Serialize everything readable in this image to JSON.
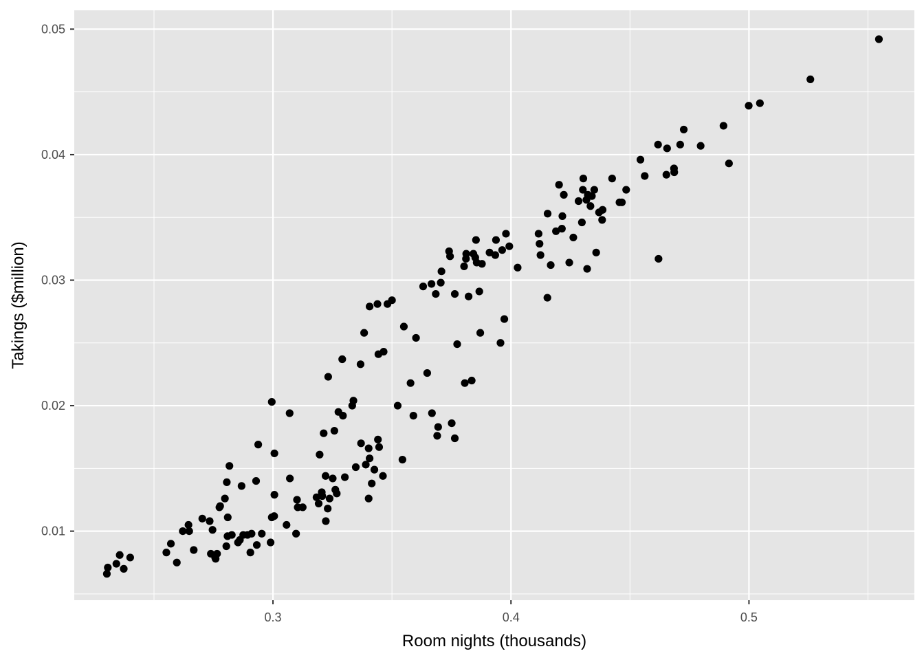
{
  "chart_data": {
    "type": "scatter",
    "title": "",
    "xlabel": "Room nights (thousands)",
    "ylabel": "Takings ($million)",
    "xlim": [
      0.2165,
      0.5695
    ],
    "ylim": [
      0.0045,
      0.0515
    ],
    "x_ticks": [
      0.3,
      0.4,
      0.5
    ],
    "x_tick_labels": [
      "0.3",
      "0.4",
      "0.5"
    ],
    "x_minor_ticks": [
      0.25,
      0.35,
      0.45,
      0.55
    ],
    "y_ticks": [
      0.01,
      0.02,
      0.03,
      0.04,
      0.05
    ],
    "y_tick_labels": [
      "0.01",
      "0.02",
      "0.03",
      "0.04",
      "0.05"
    ],
    "y_minor_ticks": [
      0.005,
      0.015,
      0.025,
      0.035,
      0.045
    ],
    "grid": true,
    "legend": "none",
    "colors": {
      "panel": "#e5e5e5",
      "grid": "#ffffff",
      "point": "#000000",
      "tick": "#333333",
      "tick_text": "#4d4d4d"
    },
    "points": [
      [
        0.2302,
        0.0066
      ],
      [
        0.2306,
        0.0071
      ],
      [
        0.2342,
        0.0074
      ],
      [
        0.2356,
        0.0081
      ],
      [
        0.2373,
        0.007
      ],
      [
        0.24,
        0.0079
      ],
      [
        0.2552,
        0.0083
      ],
      [
        0.2571,
        0.009
      ],
      [
        0.2596,
        0.0075
      ],
      [
        0.2621,
        0.01
      ],
      [
        0.2645,
        0.0105
      ],
      [
        0.2648,
        0.01
      ],
      [
        0.2667,
        0.0085
      ],
      [
        0.2703,
        0.011
      ],
      [
        0.2734,
        0.0108
      ],
      [
        0.2739,
        0.0082
      ],
      [
        0.2746,
        0.0101
      ],
      [
        0.2757,
        0.0079
      ],
      [
        0.2759,
        0.0078
      ],
      [
        0.2765,
        0.0082
      ],
      [
        0.2775,
        0.0119
      ],
      [
        0.2778,
        0.012
      ],
      [
        0.2798,
        0.0126
      ],
      [
        0.2804,
        0.0088
      ],
      [
        0.2806,
        0.0139
      ],
      [
        0.281,
        0.0111
      ],
      [
        0.2809,
        0.0096
      ],
      [
        0.2817,
        0.0152
      ],
      [
        0.2827,
        0.0097
      ],
      [
        0.2853,
        0.0091
      ],
      [
        0.2861,
        0.0093
      ],
      [
        0.2868,
        0.0136
      ],
      [
        0.2875,
        0.0097
      ],
      [
        0.2893,
        0.0097
      ],
      [
        0.2905,
        0.0083
      ],
      [
        0.291,
        0.0098
      ],
      [
        0.2929,
        0.014
      ],
      [
        0.2932,
        0.0089
      ],
      [
        0.2938,
        0.0169
      ],
      [
        0.2953,
        0.0098
      ],
      [
        0.299,
        0.0091
      ],
      [
        0.2995,
        0.0111
      ],
      [
        0.2995,
        0.0203
      ],
      [
        0.3005,
        0.0112
      ],
      [
        0.3006,
        0.0129
      ],
      [
        0.3006,
        0.0162
      ],
      [
        0.3057,
        0.0105
      ],
      [
        0.307,
        0.0194
      ],
      [
        0.3071,
        0.0142
      ],
      [
        0.3097,
        0.0098
      ],
      [
        0.3101,
        0.0125
      ],
      [
        0.3104,
        0.0119
      ],
      [
        0.3125,
        0.0119
      ],
      [
        0.3183,
        0.0127
      ],
      [
        0.3192,
        0.0122
      ],
      [
        0.3196,
        0.0161
      ],
      [
        0.3205,
        0.0131
      ],
      [
        0.3207,
        0.0128
      ],
      [
        0.3213,
        0.0178
      ],
      [
        0.3221,
        0.0144
      ],
      [
        0.3222,
        0.0108
      ],
      [
        0.323,
        0.0118
      ],
      [
        0.3232,
        0.0223
      ],
      [
        0.3238,
        0.0126
      ],
      [
        0.3251,
        0.0142
      ],
      [
        0.3258,
        0.018
      ],
      [
        0.3262,
        0.0133
      ],
      [
        0.3268,
        0.013
      ],
      [
        0.3275,
        0.0195
      ],
      [
        0.3291,
        0.0237
      ],
      [
        0.3294,
        0.0192
      ],
      [
        0.3302,
        0.0143
      ],
      [
        0.3333,
        0.02
      ],
      [
        0.3338,
        0.0204
      ],
      [
        0.3348,
        0.0151
      ],
      [
        0.3368,
        0.0233
      ],
      [
        0.337,
        0.017
      ],
      [
        0.3383,
        0.0258
      ],
      [
        0.339,
        0.0153
      ],
      [
        0.3402,
        0.0126
      ],
      [
        0.3402,
        0.0166
      ],
      [
        0.3406,
        0.0158
      ],
      [
        0.3406,
        0.0279
      ],
      [
        0.3415,
        0.0138
      ],
      [
        0.3426,
        0.0149
      ],
      [
        0.3439,
        0.0281
      ],
      [
        0.3441,
        0.0173
      ],
      [
        0.3443,
        0.0241
      ],
      [
        0.3446,
        0.0167
      ],
      [
        0.3462,
        0.0144
      ],
      [
        0.3465,
        0.0243
      ],
      [
        0.3481,
        0.0281
      ],
      [
        0.35,
        0.0284
      ],
      [
        0.3524,
        0.02
      ],
      [
        0.3544,
        0.0157
      ],
      [
        0.355,
        0.0263
      ],
      [
        0.3578,
        0.0218
      ],
      [
        0.359,
        0.0192
      ],
      [
        0.3601,
        0.0254
      ],
      [
        0.3631,
        0.0295
      ],
      [
        0.3648,
        0.0226
      ],
      [
        0.3666,
        0.0297
      ],
      [
        0.3668,
        0.0194
      ],
      [
        0.3684,
        0.0289
      ],
      [
        0.369,
        0.0176
      ],
      [
        0.3694,
        0.0183
      ],
      [
        0.3705,
        0.0298
      ],
      [
        0.3708,
        0.0307
      ],
      [
        0.374,
        0.0323
      ],
      [
        0.3744,
        0.0319
      ],
      [
        0.3751,
        0.0186
      ],
      [
        0.3764,
        0.0289
      ],
      [
        0.3764,
        0.0174
      ],
      [
        0.3774,
        0.0249
      ],
      [
        0.3803,
        0.0311
      ],
      [
        0.3806,
        0.0218
      ],
      [
        0.3811,
        0.0317
      ],
      [
        0.3812,
        0.0321
      ],
      [
        0.3822,
        0.0287
      ],
      [
        0.3835,
        0.022
      ],
      [
        0.3842,
        0.0321
      ],
      [
        0.385,
        0.0318
      ],
      [
        0.3853,
        0.0332
      ],
      [
        0.3856,
        0.0314
      ],
      [
        0.3867,
        0.0291
      ],
      [
        0.3871,
        0.0258
      ],
      [
        0.3878,
        0.0313
      ],
      [
        0.391,
        0.0322
      ],
      [
        0.3934,
        0.032
      ],
      [
        0.3937,
        0.0332
      ],
      [
        0.3956,
        0.025
      ],
      [
        0.3963,
        0.0324
      ],
      [
        0.3972,
        0.0269
      ],
      [
        0.3979,
        0.0337
      ],
      [
        0.3993,
        0.0327
      ],
      [
        0.4028,
        0.031
      ],
      [
        0.4116,
        0.0337
      ],
      [
        0.412,
        0.0329
      ],
      [
        0.4124,
        0.032
      ],
      [
        0.4153,
        0.0286
      ],
      [
        0.4154,
        0.0353
      ],
      [
        0.4167,
        0.0312
      ],
      [
        0.4189,
        0.0339
      ],
      [
        0.4202,
        0.0376
      ],
      [
        0.4214,
        0.0341
      ],
      [
        0.4216,
        0.0351
      ],
      [
        0.4222,
        0.0368
      ],
      [
        0.4245,
        0.0314
      ],
      [
        0.4262,
        0.0334
      ],
      [
        0.4284,
        0.0363
      ],
      [
        0.4298,
        0.0346
      ],
      [
        0.4302,
        0.0372
      ],
      [
        0.4304,
        0.0381
      ],
      [
        0.4317,
        0.0364
      ],
      [
        0.432,
        0.0309
      ],
      [
        0.4323,
        0.0368
      ],
      [
        0.4334,
        0.0359
      ],
      [
        0.434,
        0.0367
      ],
      [
        0.435,
        0.0372
      ],
      [
        0.4358,
        0.0322
      ],
      [
        0.437,
        0.0354
      ],
      [
        0.4383,
        0.0348
      ],
      [
        0.4385,
        0.0356
      ],
      [
        0.4425,
        0.0381
      ],
      [
        0.4456,
        0.0362
      ],
      [
        0.4466,
        0.0362
      ],
      [
        0.4484,
        0.0372
      ],
      [
        0.4544,
        0.0396
      ],
      [
        0.4562,
        0.0383
      ],
      [
        0.4618,
        0.0408
      ],
      [
        0.462,
        0.0317
      ],
      [
        0.4653,
        0.0384
      ],
      [
        0.4656,
        0.0405
      ],
      [
        0.4685,
        0.0389
      ],
      [
        0.4686,
        0.0386
      ],
      [
        0.4711,
        0.0408
      ],
      [
        0.4726,
        0.042
      ],
      [
        0.4797,
        0.0407
      ],
      [
        0.4893,
        0.0423
      ],
      [
        0.4916,
        0.0393
      ],
      [
        0.4999,
        0.0439
      ],
      [
        0.5046,
        0.0441
      ],
      [
        0.5258,
        0.046
      ],
      [
        0.5546,
        0.0492
      ]
    ]
  }
}
